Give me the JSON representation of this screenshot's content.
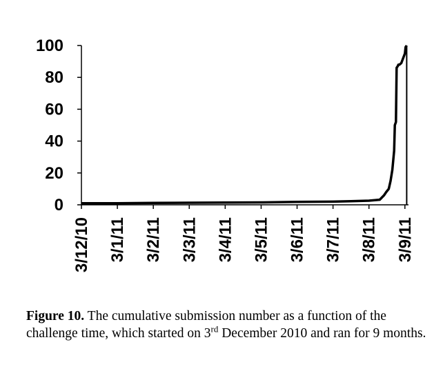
{
  "chart_data": {
    "type": "line",
    "title": "",
    "xlabel": "",
    "ylabel": "",
    "ylim": [
      0,
      100
    ],
    "yticks": [
      0,
      20,
      40,
      60,
      80,
      100
    ],
    "xlim": [
      0,
      9.1
    ],
    "x_tick_labels": [
      "3/12/10",
      "3/1/11",
      "3/2/11",
      "3/3/11",
      "3/4/11",
      "3/5/11",
      "3/6/11",
      "3/7/11",
      "3/8/11",
      "3/9/11"
    ],
    "series": [
      {
        "name": "cumulative submissions",
        "x": [
          0,
          1,
          2,
          3,
          4,
          5,
          6,
          7,
          7.5,
          8,
          8.3,
          8.42,
          8.48,
          8.55,
          8.6,
          8.65,
          8.7,
          8.72,
          8.75,
          8.77,
          8.8,
          8.82,
          8.85,
          8.9,
          8.95,
          9.0,
          9.02,
          9.05
        ],
        "values": [
          1,
          1,
          1.2,
          1.3,
          1.4,
          1.5,
          1.8,
          2.0,
          2.3,
          2.6,
          3.2,
          6,
          8,
          10,
          15,
          22,
          34,
          50,
          52,
          86,
          87,
          88,
          88,
          89,
          92,
          95,
          99,
          100
        ]
      }
    ]
  },
  "caption": {
    "label": "Figure 10.",
    "text_before_sup": " The cumulative submission number as a function of the challenge time, which started on 3",
    "sup": "rd",
    "text_after_sup": " December 2010 and ran for 9 months."
  }
}
